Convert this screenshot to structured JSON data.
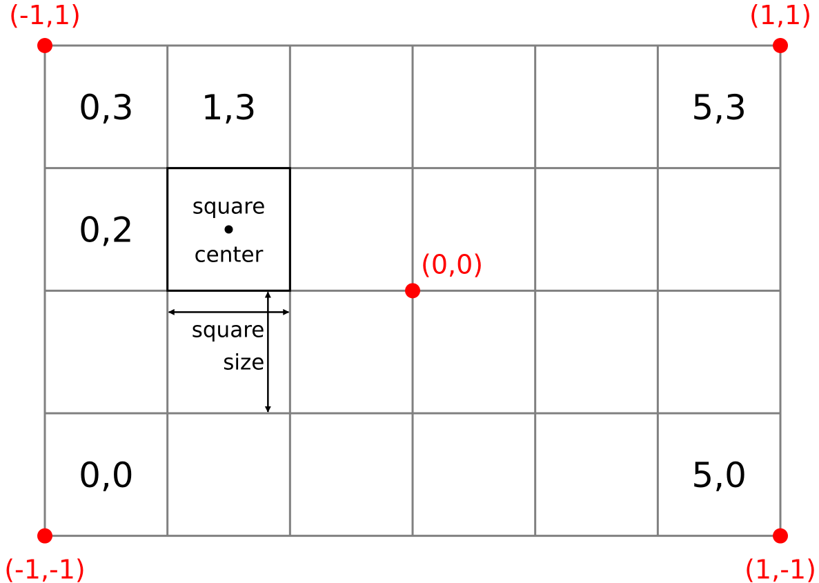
{
  "colors": {
    "grid": "#808080",
    "text": "#000000",
    "accent": "#ff0000",
    "background": "#ffffff"
  },
  "grid": {
    "columns": 6,
    "rows": 4
  },
  "cell_labels": [
    {
      "id": "0-3",
      "col": 0,
      "row": 3,
      "text": "0,3"
    },
    {
      "id": "1-3",
      "col": 1,
      "row": 3,
      "text": "1,3"
    },
    {
      "id": "5-3",
      "col": 5,
      "row": 3,
      "text": "5,3"
    },
    {
      "id": "0-2",
      "col": 0,
      "row": 2,
      "text": "0,2"
    },
    {
      "id": "0-0",
      "col": 0,
      "row": 0,
      "text": "0,0"
    },
    {
      "id": "5-0",
      "col": 5,
      "row": 0,
      "text": "5,0"
    }
  ],
  "highlight_square": {
    "col": 1,
    "row": 2,
    "label_top": "square",
    "label_bottom": "center"
  },
  "size_annotation": {
    "line1": "square",
    "line2": "size"
  },
  "coordinate_points": [
    {
      "id": "top-left",
      "label": "(-1,1)",
      "nx": -1,
      "ny": 1
    },
    {
      "id": "top-right",
      "label": "(1,1)",
      "nx": 1,
      "ny": 1
    },
    {
      "id": "center",
      "label": "(0,0)",
      "nx": 0,
      "ny": 0
    },
    {
      "id": "bottom-left",
      "label": "(-1,-1)",
      "nx": -1,
      "ny": -1
    },
    {
      "id": "bottom-right",
      "label": "(1,-1)",
      "nx": 1,
      "ny": -1
    }
  ]
}
